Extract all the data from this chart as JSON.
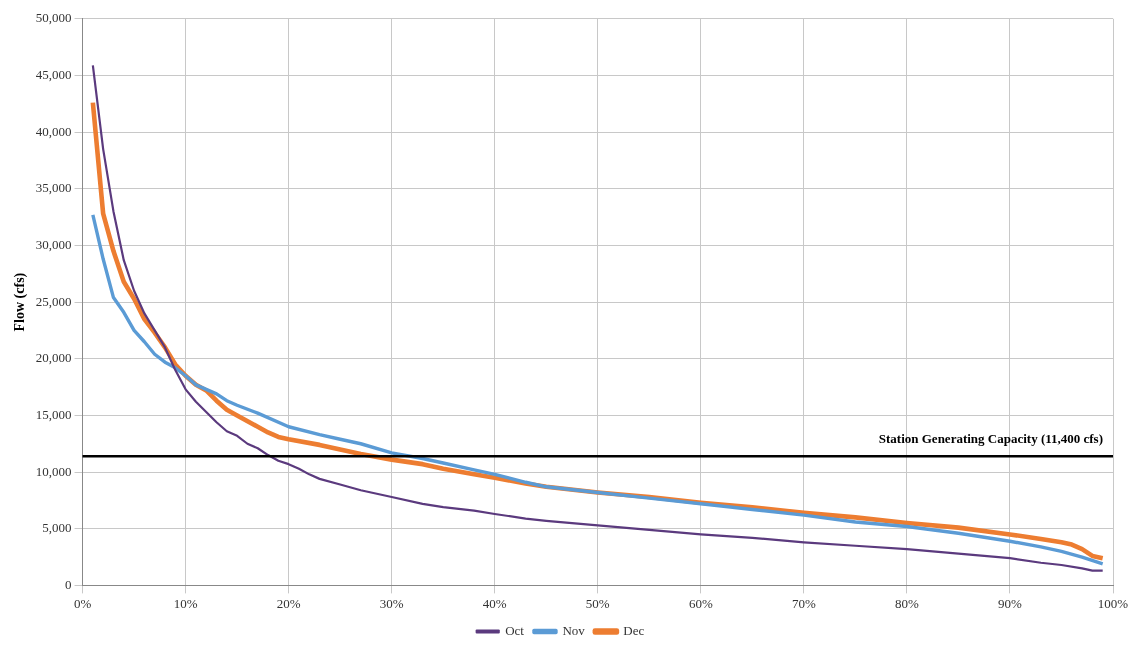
{
  "chart_data": {
    "type": "line",
    "ylabel": "Flow (cfs)",
    "xlim": [
      0,
      100
    ],
    "ylim": [
      0,
      50000
    ],
    "xticks": [
      {
        "value": 0,
        "label": "0%"
      },
      {
        "value": 10,
        "label": "10%"
      },
      {
        "value": 20,
        "label": "20%"
      },
      {
        "value": 30,
        "label": "30%"
      },
      {
        "value": 40,
        "label": "40%"
      },
      {
        "value": 50,
        "label": "50%"
      },
      {
        "value": 60,
        "label": "60%"
      },
      {
        "value": 70,
        "label": "70%"
      },
      {
        "value": 80,
        "label": "80%"
      },
      {
        "value": 90,
        "label": "90%"
      },
      {
        "value": 100,
        "label": "100%"
      }
    ],
    "yticks": [
      0,
      {
        "value": 5000,
        "label": "5,000"
      },
      {
        "value": 10000,
        "label": "10,000"
      },
      {
        "value": 15000,
        "label": "15,000"
      },
      {
        "value": 20000,
        "label": "20,000"
      },
      {
        "value": 25000,
        "label": "25,000"
      },
      {
        "value": 30000,
        "label": "30,000"
      },
      {
        "value": 35000,
        "label": "35,000"
      },
      {
        "value": 40000,
        "label": "40,000"
      },
      {
        "value": 45000,
        "label": "45,000"
      },
      {
        "value": 50000,
        "label": "50,000"
      }
    ],
    "grid": true,
    "legend": "bottom",
    "marker": "none",
    "line_style": "solid",
    "series": [
      {
        "name": "Oct",
        "color": "#5b3a7e",
        "x": [
          1,
          2,
          3,
          4,
          5,
          6,
          7,
          8,
          9,
          10,
          11,
          12,
          13,
          14,
          15,
          16,
          17,
          18,
          19,
          20,
          21,
          22,
          23,
          25,
          27,
          30,
          33,
          35,
          38,
          40,
          43,
          45,
          50,
          55,
          60,
          65,
          70,
          75,
          80,
          85,
          90,
          93,
          95,
          97,
          98,
          99
        ],
        "values": [
          45900,
          38500,
          33000,
          28700,
          26000,
          24000,
          22500,
          21000,
          19000,
          17300,
          16200,
          15300,
          14400,
          13600,
          13200,
          12500,
          12100,
          11500,
          11000,
          10700,
          10300,
          9800,
          9400,
          8900,
          8400,
          7800,
          7200,
          6900,
          6600,
          6300,
          5900,
          5700,
          5300,
          4900,
          4500,
          4200,
          3800,
          3500,
          3200,
          2800,
          2400,
          2000,
          1800,
          1500,
          1300,
          1300
        ]
      },
      {
        "name": "Nov",
        "color": "#5b9bd5",
        "x": [
          1,
          2,
          3,
          4,
          5,
          6,
          7,
          8,
          9,
          10,
          11,
          12,
          13,
          14,
          15,
          17,
          20,
          23,
          25,
          27,
          30,
          33,
          35,
          38,
          40,
          43,
          45,
          50,
          55,
          60,
          65,
          70,
          75,
          80,
          85,
          90,
          93,
          95,
          97,
          99
        ],
        "values": [
          32700,
          28800,
          25400,
          24100,
          22500,
          21500,
          20400,
          19700,
          19200,
          18500,
          17700,
          17300,
          16900,
          16300,
          15900,
          15200,
          14000,
          13300,
          12900,
          12500,
          11700,
          11200,
          10800,
          10200,
          9800,
          9100,
          8700,
          8200,
          7700,
          7200,
          6700,
          6200,
          5600,
          5200,
          4600,
          3900,
          3400,
          3000,
          2500,
          1900
        ]
      },
      {
        "name": "Dec",
        "color": "#ed7d31",
        "x": [
          1,
          2,
          3,
          4,
          5,
          6,
          7,
          8,
          9,
          10,
          11,
          12,
          13,
          14,
          15,
          17,
          18,
          19,
          20,
          23,
          25,
          27,
          30,
          33,
          35,
          38,
          40,
          43,
          45,
          50,
          55,
          60,
          65,
          70,
          75,
          80,
          85,
          90,
          93,
          95,
          96,
          97,
          98,
          99
        ],
        "values": [
          42600,
          32800,
          29500,
          26800,
          25300,
          23500,
          22300,
          21000,
          19500,
          18500,
          17700,
          17200,
          16300,
          15500,
          15000,
          14000,
          13500,
          13100,
          12900,
          12400,
          12000,
          11600,
          11100,
          10700,
          10300,
          9800,
          9500,
          9000,
          8700,
          8200,
          7800,
          7300,
          6900,
          6400,
          6000,
          5500,
          5100,
          4500,
          4100,
          3800,
          3600,
          3200,
          2600,
          2400
        ]
      }
    ],
    "ref_lines": [
      {
        "axis": "y",
        "value": 11400,
        "label": "Station Generating Capacity (11,400 cfs)",
        "color": "#000000"
      }
    ]
  }
}
